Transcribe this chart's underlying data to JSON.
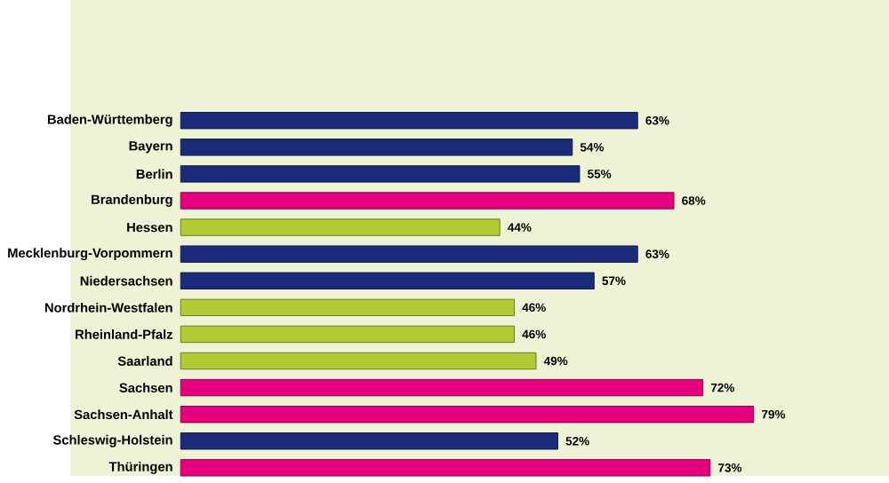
{
  "chart_data": {
    "type": "bar",
    "orientation": "horizontal",
    "categories": [
      "Baden-Württemberg",
      "Bayern",
      "Berlin",
      "Brandenburg",
      "Hessen",
      "Mecklenburg-Vorpommern",
      "Niedersachsen",
      "Nordrhein-Westfalen",
      "Rheinland-Pfalz",
      "Saarland",
      "Sachsen",
      "Sachsen-Anhalt",
      "Schleswig-Holstein",
      "Thüringen"
    ],
    "values": [
      63,
      54,
      55,
      68,
      44,
      63,
      57,
      46,
      46,
      49,
      72,
      79,
      52,
      73
    ],
    "value_labels": [
      "63%",
      "54%",
      "55%",
      "68%",
      "44%",
      "63%",
      "57%",
      "46%",
      "46%",
      "49%",
      "72%",
      "79%",
      "52%",
      "73%"
    ],
    "colors": [
      "#1c2a7a",
      "#1c2a7a",
      "#1c2a7a",
      "#e5007d",
      "#b3c935",
      "#1c2a7a",
      "#1c2a7a",
      "#b3c935",
      "#b3c935",
      "#b3c935",
      "#e5007d",
      "#e5007d",
      "#1c2a7a",
      "#e5007d"
    ]
  }
}
